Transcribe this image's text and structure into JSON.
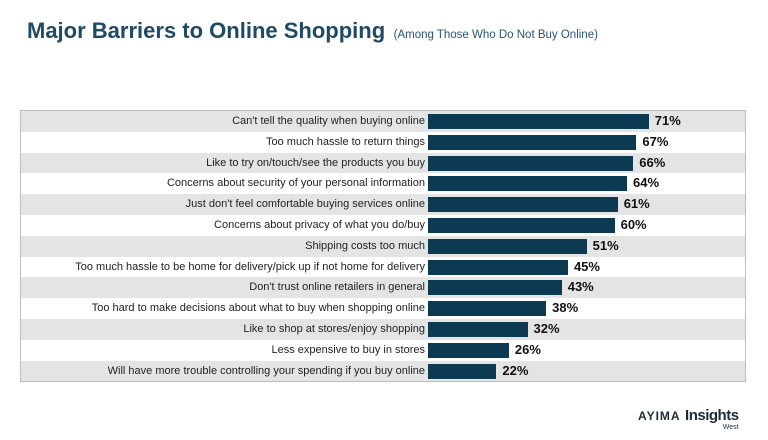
{
  "chart_data": {
    "type": "bar",
    "orientation": "horizontal",
    "title": "Major Barriers to Online Shopping",
    "subtitle": "(Among Those Who Do Not Buy Online)",
    "categories": [
      "Can't tell the quality when buying online",
      "Too much hassle to return things",
      "Like to try on/touch/see the products you buy",
      "Concerns about security of your personal information",
      "Just don't feel comfortable buying services online",
      "Concerns about privacy of what you do/buy",
      "Shipping costs too much",
      "Too much hassle to be home for delivery/pick up if not home for delivery",
      "Don't trust online retailers in general",
      "Too hard to make decisions about what to buy when shopping online",
      "Like to shop at stores/enjoy shopping",
      "Less expensive to buy in stores",
      "Will have more trouble controlling your spending if you buy online"
    ],
    "values": [
      71,
      67,
      66,
      64,
      61,
      60,
      51,
      45,
      43,
      38,
      32,
      26,
      22
    ],
    "value_labels": [
      "71%",
      "67%",
      "66%",
      "64%",
      "61%",
      "60%",
      "51%",
      "45%",
      "43%",
      "38%",
      "32%",
      "26%",
      "22%"
    ],
    "xlim": [
      0,
      100
    ],
    "grid": false,
    "colors": {
      "bar": "#0b3a52",
      "row_alt": "#e4e4e4",
      "title": "#1e4a66"
    }
  },
  "logo": {
    "brand": "AYIMA",
    "name": "Insights",
    "suffix": "West"
  }
}
